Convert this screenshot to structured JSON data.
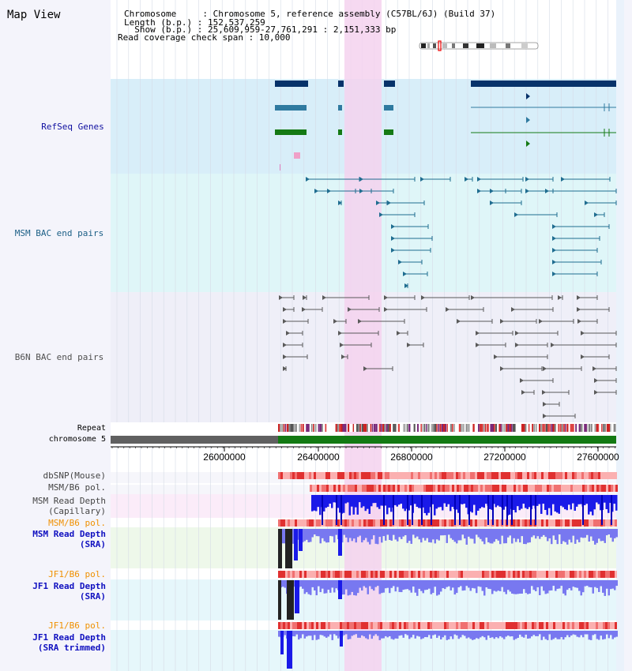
{
  "title": "Map View",
  "header": {
    "lines": [
      "Chromosome     : Chromosome 5, reference assembly (C57BL/6J) (Build 37)",
      "Length (b.p.) : 152,537,259",
      "  Show (b.p.) : 25,609,959-27,761,291 : 2,151,333 bp",
      "Read coverage check span : 10,000"
    ]
  },
  "tracks": {
    "refseq": {
      "label": "RefSeq Genes",
      "color": "#1010a0"
    },
    "msm_bac": {
      "label": "MSM BAC end pairs",
      "color": "#1c5f86"
    },
    "b6n_bac": {
      "label": "B6N BAC end pairs",
      "color": "#505050"
    },
    "repeat": {
      "label": "Repeat"
    },
    "chrom": {
      "label": "chromosome 5"
    },
    "dbsnp": {
      "label": "dbSNP(Mouse)",
      "color": "#444444"
    },
    "msm_pol1": {
      "label": "MSM/B6 pol.",
      "color": "#444444"
    },
    "msm_depth_cap": {
      "label": "MSM Read Depth\n(Capillary)",
      "color": "#444444"
    },
    "msm_pol2": {
      "label": "MSM/B6 pol.",
      "color": "#f09000"
    },
    "msm_depth_sra": {
      "label": "MSM Read Depth\n(SRA)",
      "color": "#1010c0"
    },
    "jf1_pol1": {
      "label": "JF1/B6 pol.",
      "color": "#f09000"
    },
    "jf1_depth_sra": {
      "label": "JF1 Read Depth\n(SRA)",
      "color": "#1010c0"
    },
    "jf1_pol2": {
      "label": "JF1/B6 pol.",
      "color": "#f09000"
    },
    "jf1_depth_trim": {
      "label": "JF1 Read Depth\n(SRA trimmed)",
      "color": "#1010c0"
    }
  },
  "axis": {
    "ticks": [
      "26000000",
      "26400000",
      "26800000",
      "27200000",
      "27600000"
    ]
  },
  "colors": {
    "highlight": "#f5d2ef",
    "refseq_bg": "#d8eef9",
    "msm_bg": "#dff6f8",
    "b6n_bg": "#efeff8",
    "gene_dark": "#07326a",
    "gene_blue": "#2f7aa0",
    "gene_green": "#157a15",
    "depth_blue": "#1a1ae8",
    "depth_light": "#7878f0",
    "pol_red": "#e84a4a",
    "chrom_green": "#137a13",
    "chrom_gray": "#606060"
  }
}
